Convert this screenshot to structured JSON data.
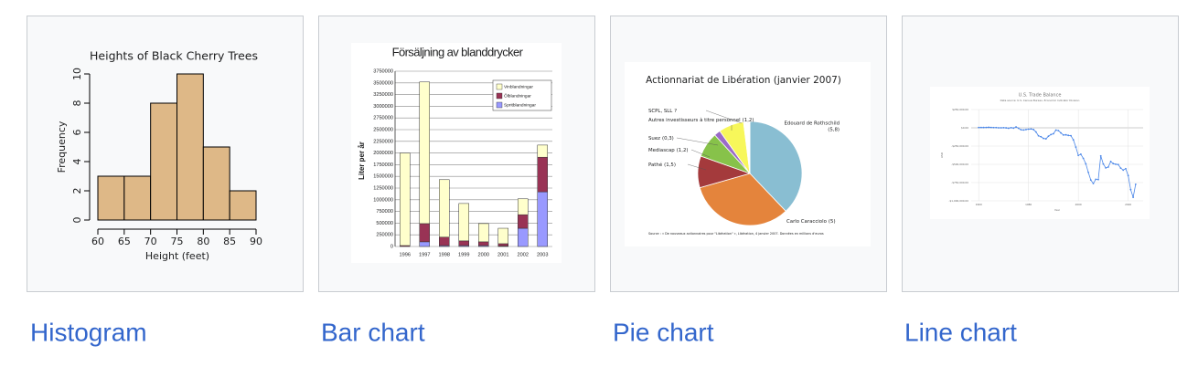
{
  "gallery": [
    "Histogram",
    "Bar chart",
    "Pie chart",
    "Line chart"
  ],
  "chart_data": [
    {
      "type": "histogram",
      "title": "Heights of Black Cherry Trees",
      "x_label": "Height (feet)",
      "y_label": "Frequency",
      "bins": [
        60,
        65,
        70,
        75,
        80,
        85,
        90
      ],
      "values": [
        3,
        3,
        8,
        10,
        5,
        2
      ],
      "color": "#deb887",
      "xlim": [
        60,
        90
      ],
      "xticks": [
        60,
        65,
        70,
        75,
        80,
        85,
        90
      ],
      "ylim": [
        0,
        10
      ],
      "yticks": [
        0,
        2,
        4,
        6,
        8,
        10
      ]
    },
    {
      "type": "bar",
      "title": "Försäljning av blanddrycker",
      "y_label": "Liter per år",
      "stacked": true,
      "grid": true,
      "legend": "upper right",
      "categories": [
        "1996",
        "1997",
        "1998",
        "1999",
        "2000",
        "2001",
        "2002",
        "2003"
      ],
      "series": [
        {
          "name": "Vinblandningar",
          "color": "#ffffcc",
          "values": [
            1980000,
            3030000,
            1230000,
            800000,
            390000,
            330000,
            340000,
            260000
          ]
        },
        {
          "name": "Ölblandningar",
          "color": "#993355",
          "values": [
            20000,
            390000,
            180000,
            100000,
            80000,
            50000,
            290000,
            740000
          ]
        },
        {
          "name": "Spritblandningar",
          "color": "#9999ff",
          "values": [
            0,
            100000,
            20000,
            20000,
            20000,
            10000,
            390000,
            1170000
          ]
        }
      ],
      "ylim": [
        0,
        3750000
      ],
      "yticks": [
        0,
        250000,
        500000,
        750000,
        1000000,
        1250000,
        1500000,
        1750000,
        2000000,
        2250000,
        2500000,
        2750000,
        3000000,
        3250000,
        3500000,
        3750000
      ]
    },
    {
      "type": "pie",
      "title": "Actionnariat de Libération (janvier 2007)",
      "source": "Source : « De nouveaux actionnaires pour \"Libération\" », Libération, 4 janvier 2007. Données en millions d'euros",
      "categories": [
        "Edouard de Rothschild",
        "Carlo Caracciolo",
        "Pathé",
        "Mediascap",
        "Suez",
        "Autres investisseurs à titre personnel",
        "SCPL, SLL"
      ],
      "values": [
        5.8,
        5,
        1.5,
        1.2,
        0.3,
        1.2,
        0.3
      ],
      "value_labels": [
        "(5,8)",
        "(5)",
        "(1,5)",
        "(1,2)",
        "(0,3)",
        "(1,2)",
        "?"
      ],
      "colors": [
        "#89bed2",
        "#e4843c",
        "#a43a3c",
        "#87c24a",
        "#9a6bc7",
        "#f7f75a",
        "#ffffff"
      ]
    },
    {
      "type": "line",
      "title": "U.S. Trade Balance",
      "subtitle": "Data source: U.S. Census Bureau, Economic Indicator Division",
      "x_label": "Year",
      "y_label": "USD",
      "grid": true,
      "color": "#4a86e8",
      "x": [
        1960,
        1961,
        1962,
        1963,
        1964,
        1965,
        1966,
        1967,
        1968,
        1969,
        1970,
        1971,
        1972,
        1973,
        1974,
        1975,
        1976,
        1977,
        1978,
        1979,
        1980,
        1981,
        1982,
        1983,
        1984,
        1985,
        1986,
        1987,
        1988,
        1989,
        1990,
        1991,
        1992,
        1993,
        1994,
        1995,
        1996,
        1997,
        1998,
        1999,
        2000,
        2001,
        2002,
        2003,
        2004,
        2005,
        2006,
        2007,
        2008,
        2009,
        2010,
        2011,
        2012,
        2013,
        2014,
        2015,
        2016,
        2017,
        2018,
        2019,
        2020,
        2021,
        2022,
        2023
      ],
      "values": [
        4000,
        5000,
        4000,
        5000,
        7000,
        5000,
        3000,
        3000,
        0,
        0,
        2000,
        -1000,
        -6000,
        2000,
        -4000,
        12000,
        -6000,
        -27000,
        -30000,
        -24000,
        -19000,
        -16000,
        -24000,
        -57000,
        -109000,
        -122000,
        -145000,
        -151000,
        -115000,
        -92000,
        -81000,
        -31000,
        -39000,
        -70000,
        -98000,
        -96000,
        -104000,
        -108000,
        -165000,
        -264000,
        -378000,
        -362000,
        -419000,
        -493000,
        -609000,
        -715000,
        -762000,
        -705000,
        -709000,
        -384000,
        -495000,
        -549000,
        -537000,
        -462000,
        -490000,
        -499000,
        -503000,
        -552000,
        -579000,
        -559000,
        -654000,
        -846000,
        -951000,
        -773000
      ],
      "xlim": [
        1957,
        2026
      ],
      "xticks": [
        1960,
        1980,
        2000,
        2020
      ],
      "ylim": [
        -1000000,
        250000
      ],
      "yticks": [
        {
          "value": 250000,
          "label": "$250,000.00"
        },
        {
          "value": 0,
          "label": "$0.00"
        },
        {
          "value": -250000,
          "label": "-$250,000.00"
        },
        {
          "value": -500000,
          "label": "-$500,000.00"
        },
        {
          "value": -750000,
          "label": "-$750,000.00"
        },
        {
          "value": -1000000,
          "label": "-$1,000,000.00"
        }
      ]
    }
  ]
}
